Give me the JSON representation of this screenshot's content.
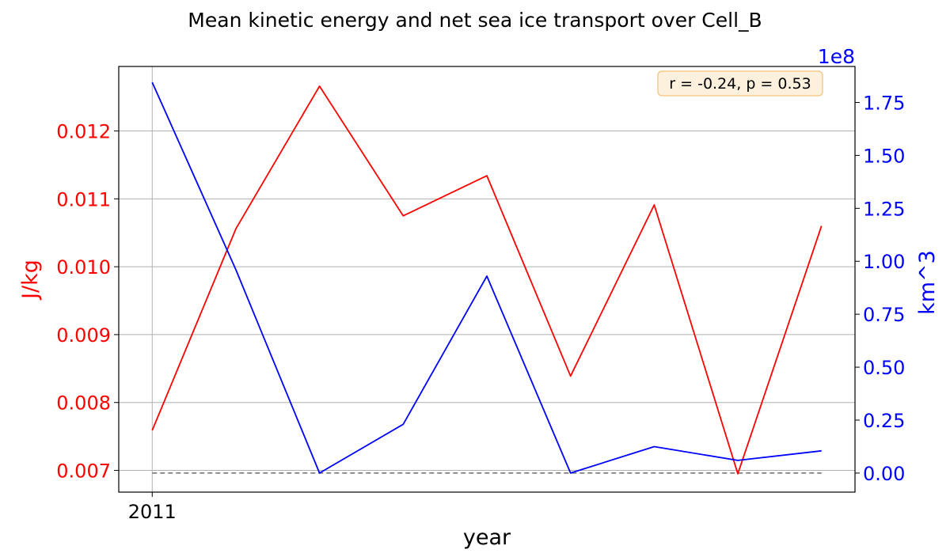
{
  "chart_data": {
    "type": "line",
    "title": "Mean kinetic energy and net sea ice transport over Cell_B",
    "xlabel": "year",
    "x": [
      2011,
      2012,
      2013,
      2014,
      2015,
      2016,
      2017,
      2018,
      2019
    ],
    "x_ticks": [
      "2011"
    ],
    "x_range": [
      2010.6,
      2019.4
    ],
    "series": [
      {
        "axis": "left",
        "color": "#ff0000",
        "values": [
          0.00759,
          0.01056,
          0.01266,
          0.01075,
          0.01134,
          0.00839,
          0.01091,
          0.00695,
          0.0106
        ]
      },
      {
        "axis": "right",
        "color": "#0000ff",
        "values": [
          184500000,
          96000000,
          0,
          23000000,
          93000000,
          0,
          12500000,
          6000000,
          10500000
        ]
      }
    ],
    "left_axis": {
      "label": "J/kg",
      "color": "#ff0000",
      "range": [
        0.00668,
        0.01295
      ],
      "ticks": [
        0.007,
        0.008,
        0.009,
        0.01,
        0.011,
        0.012
      ],
      "tick_labels": [
        "0.007",
        "0.008",
        "0.009",
        "0.010",
        "0.011",
        "0.012"
      ]
    },
    "right_axis": {
      "label": "km^3",
      "color": "#0000ff",
      "offset_label": "1e8",
      "range": [
        -9000000,
        192000000
      ],
      "ticks": [
        0,
        25000000,
        50000000,
        75000000,
        100000000,
        125000000,
        150000000,
        175000000
      ],
      "tick_labels": [
        "0.00",
        "0.25",
        "0.50",
        "0.75",
        "1.00",
        "1.25",
        "1.50",
        "1.75"
      ]
    },
    "zero_line": {
      "axis": "right",
      "value": 0,
      "style": "dashed",
      "color": "#808080"
    },
    "annotation": {
      "text": "r = -0.24, p = 0.53",
      "placement": "top-right"
    },
    "grid": true
  }
}
